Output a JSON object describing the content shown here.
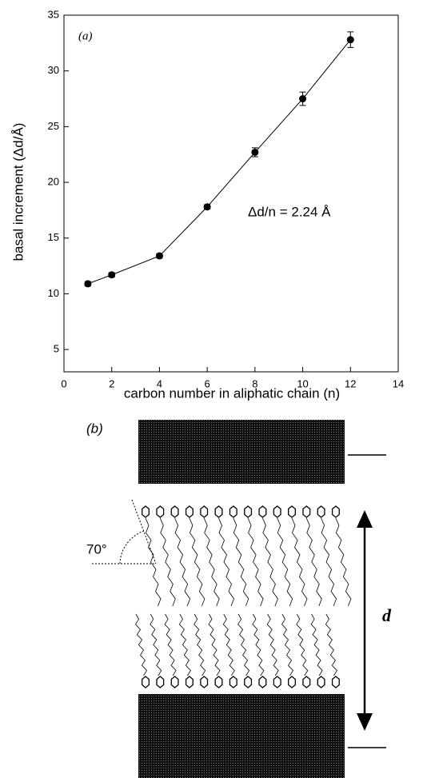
{
  "chart_data": {
    "type": "line",
    "panel_label": "(a)",
    "xlabel": "carbon number in aliphatic chain (n)",
    "ylabel": "basal increment (Δd/Å)",
    "annotation": "Δd/n = 2.24 Å",
    "x": [
      1,
      2,
      4,
      6,
      8,
      10,
      12
    ],
    "series": [
      {
        "color": "#000000",
        "values": [
          10.9,
          11.7,
          13.4,
          17.8,
          22.7,
          27.5,
          32.8
        ],
        "errors": [
          0.2,
          0.2,
          0.2,
          0.2,
          0.4,
          0.6,
          0.7
        ]
      }
    ],
    "xlim": [
      0,
      14
    ],
    "xticks": [
      0,
      2,
      4,
      6,
      8,
      10,
      12,
      14
    ],
    "ylim": [
      3,
      35
    ],
    "yticks": [
      5,
      10,
      15,
      20,
      25,
      30,
      35
    ],
    "grid": false
  },
  "diagram": {
    "panel_label": "(b)",
    "angle_label": "70°",
    "spacing_label": "d"
  }
}
